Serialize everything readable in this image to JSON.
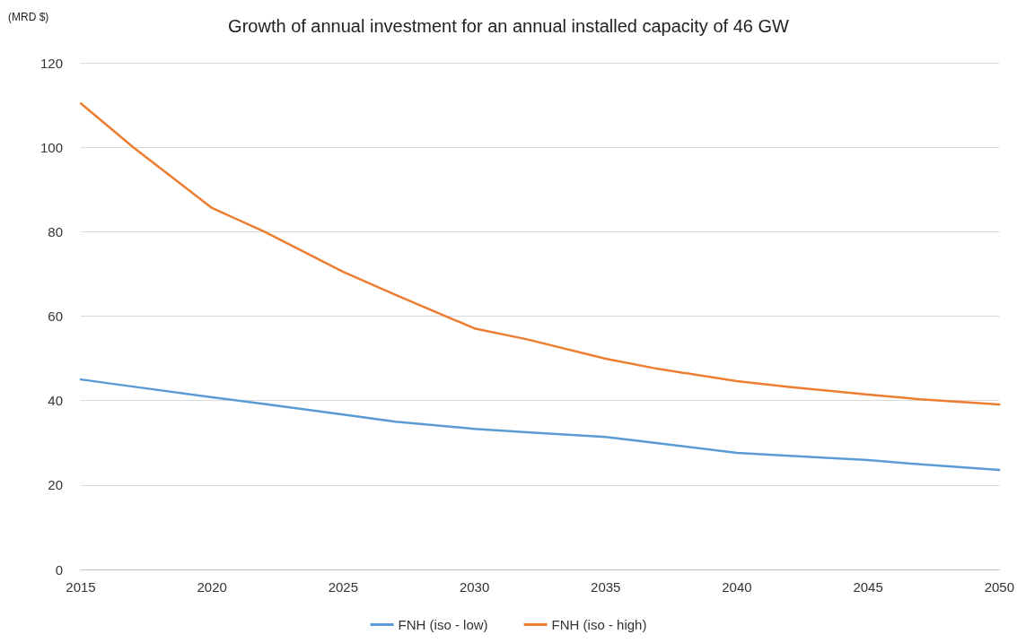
{
  "chart_data": {
    "type": "line",
    "title": "Growth of annual investment for an annual installed capacity of 46 GW",
    "ylabel": "(MRD $)",
    "x": [
      2015,
      2017,
      2020,
      2022,
      2025,
      2027,
      2030,
      2032,
      2035,
      2037,
      2040,
      2042,
      2045,
      2047,
      2050
    ],
    "series": [
      {
        "name": "FNH (iso - low)",
        "color": "#5b9bd5",
        "values": [
          45,
          43.3,
          40.8,
          39.2,
          36.7,
          35,
          33.3,
          32.5,
          31.4,
          29.9,
          27.6,
          26.9,
          25.9,
          24.9,
          23.6
        ]
      },
      {
        "name": "FNH (iso - high)",
        "color": "#ed7d31",
        "values": [
          110.4,
          100,
          85.6,
          80,
          70.5,
          65,
          57.1,
          54.5,
          49.9,
          47.5,
          44.6,
          43.2,
          41.4,
          40.3,
          39.1
        ]
      }
    ],
    "xlim": [
      2015,
      2050
    ],
    "xticks": [
      2015,
      2020,
      2025,
      2030,
      2035,
      2040,
      2045,
      2050
    ],
    "ylim": [
      0,
      120
    ],
    "yticks": [
      0,
      20,
      40,
      60,
      80,
      100,
      120
    ],
    "grid": "y",
    "legend": "bottom",
    "marker": "none",
    "line_style": "solid"
  }
}
